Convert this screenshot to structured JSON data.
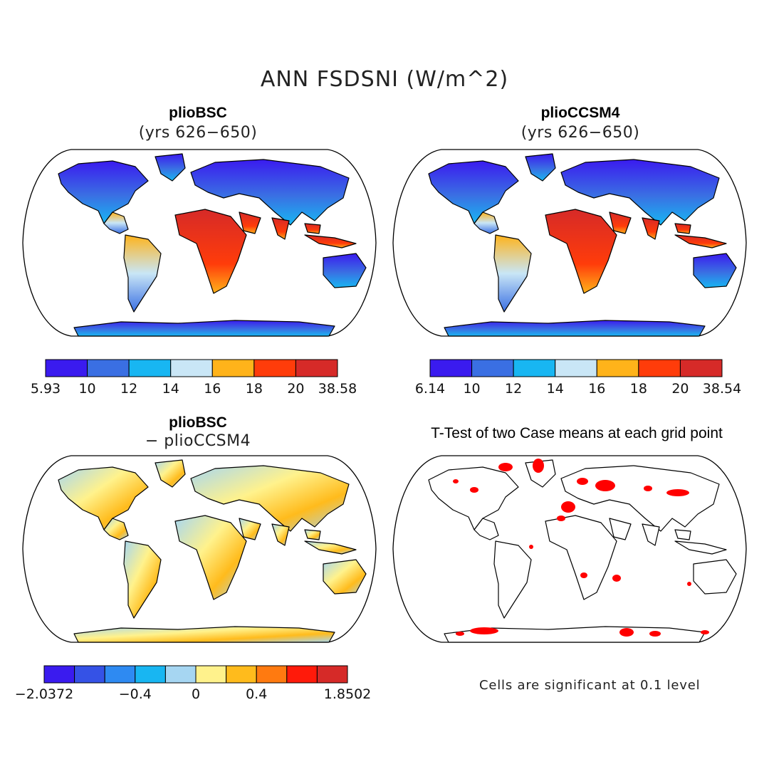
{
  "figure": {
    "title": "ANN FSDSNI (W/m^2)"
  },
  "panels": {
    "top_left": {
      "title": "plioBSC",
      "subtitle": "(yrs 626−650)"
    },
    "top_right": {
      "title": "plioCCSM4",
      "subtitle": "(yrs 626−650)"
    },
    "bottom_left": {
      "title": "plioBSC",
      "subtitle": "− plioCCSM4"
    },
    "bottom_right": {
      "title": "T-Test of two Case means at each grid point"
    }
  },
  "colorbars": {
    "top_left": {
      "colors": [
        "#3a1bef",
        "#3a6fe3",
        "#18b6f2",
        "#c9e6f6",
        "#ffb31a",
        "#ff3c0a",
        "#d62a28"
      ],
      "labels": [
        "5.93",
        "10",
        "12",
        "14",
        "16",
        "18",
        "20",
        "38.58"
      ]
    },
    "top_right": {
      "colors": [
        "#3a1bef",
        "#3a6fe3",
        "#18b6f2",
        "#c9e6f6",
        "#ffb31a",
        "#ff3c0a",
        "#d62a28"
      ],
      "labels": [
        "6.14",
        "10",
        "12",
        "14",
        "16",
        "18",
        "20",
        "38.54"
      ]
    },
    "bottom_left": {
      "colors": [
        "#3a1bef",
        "#3552e6",
        "#2e8af2",
        "#18b6f2",
        "#a6d6f2",
        "#fff28c",
        "#ffbb1c",
        "#ff7a10",
        "#ff1a0a",
        "#d62a28"
      ],
      "labels": [
        "−2.0372",
        "−0.4",
        "0",
        "0.4",
        "1.8502"
      ]
    }
  },
  "significance_note": "Cells are significant at 0.1 level",
  "map_colors": {
    "land_cold": "#3a6fe3",
    "land_hot": "#d62a28",
    "significant": "#ff0000"
  }
}
